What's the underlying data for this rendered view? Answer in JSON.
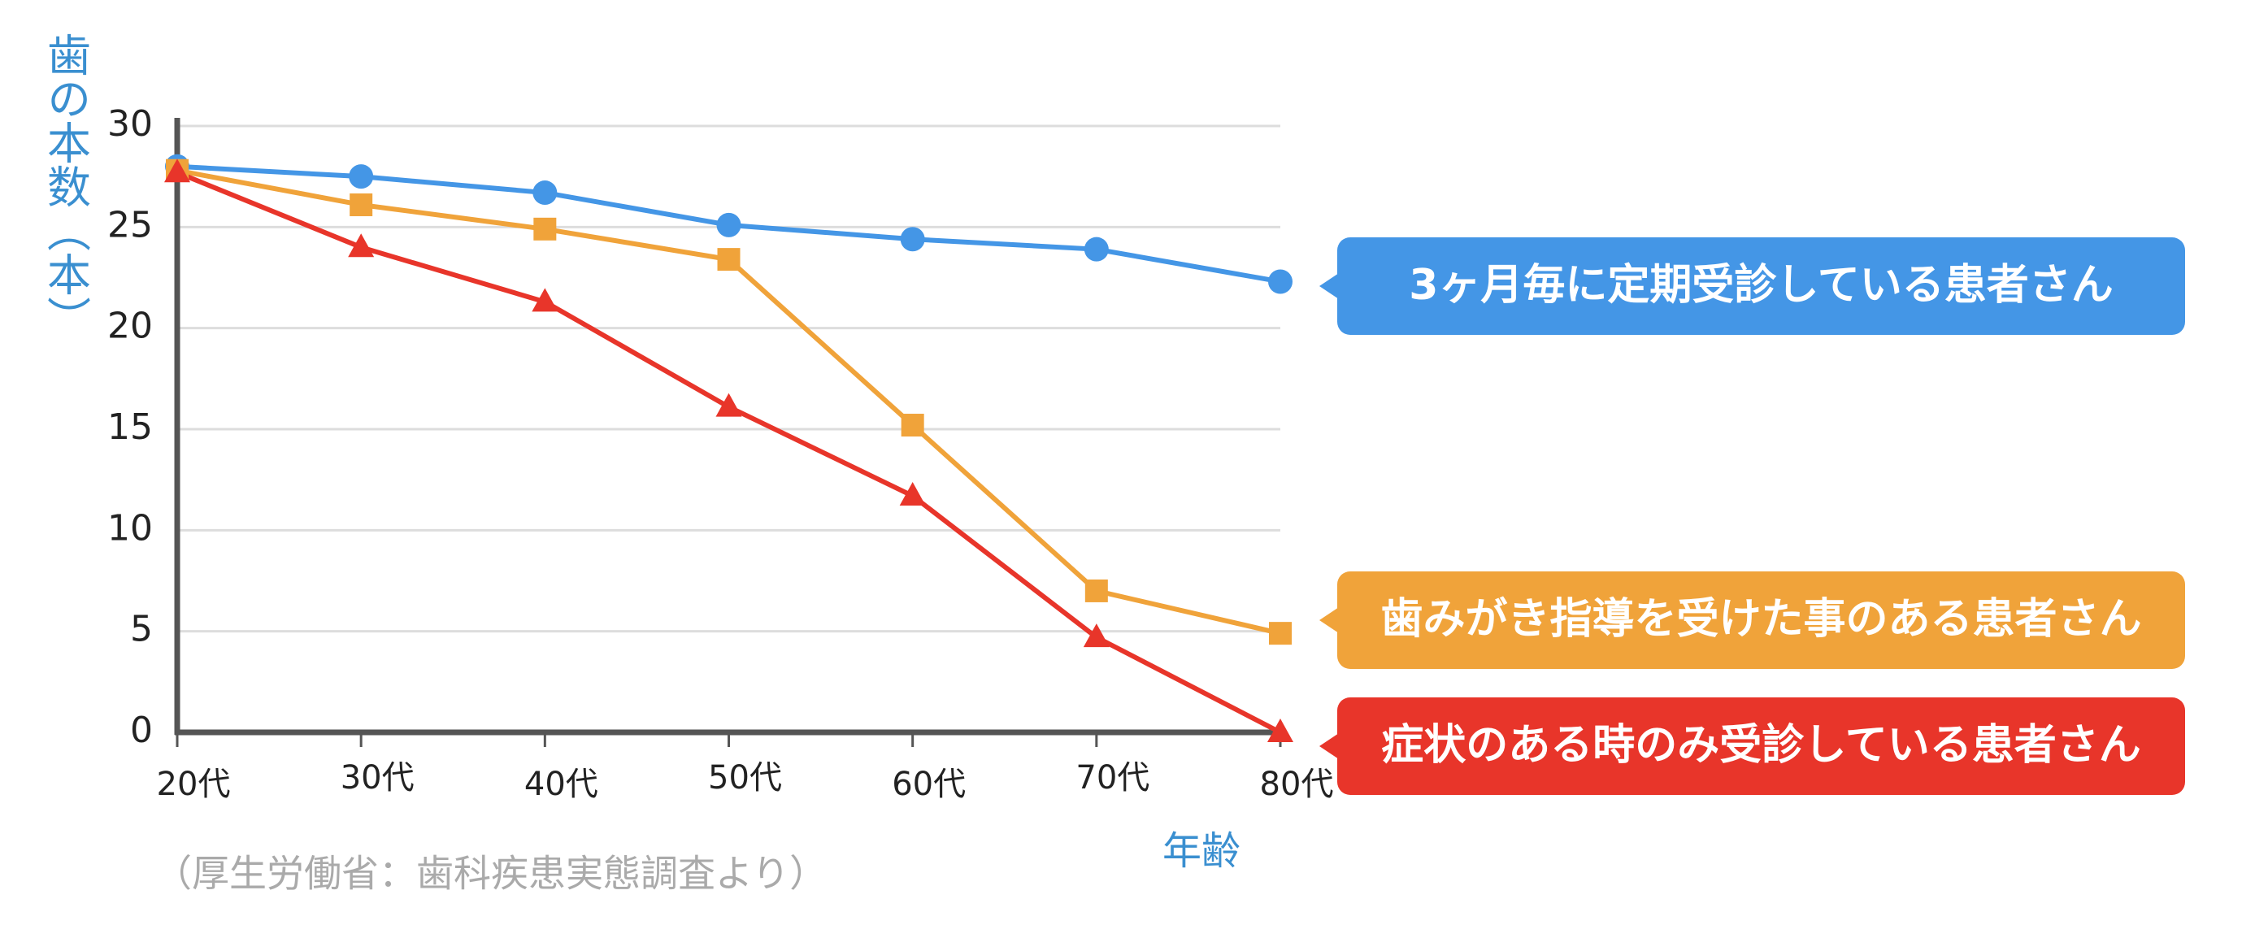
{
  "chart_data": {
    "type": "line",
    "y_label": "歯の本数（本）",
    "x_label": "年齢",
    "source": "（厚生労働省：歯科疾患実態調査より）",
    "categories": [
      "20代",
      "30代",
      "40代",
      "50代",
      "60代",
      "70代",
      "80代"
    ],
    "series": [
      {
        "name": "3ヶ月毎に定期受診している患者さん",
        "color": "#4496e6",
        "marker": "circle",
        "values": [
          28,
          27.5,
          26.7,
          25.1,
          24.4,
          23.9,
          22.3
        ]
      },
      {
        "name": "歯みがき指導を受けた事のある患者さん",
        "color": "#f0a33a",
        "marker": "square",
        "values": [
          27.8,
          26.1,
          24.9,
          23.4,
          15.2,
          7,
          4.9
        ]
      },
      {
        "name": "症状のある時のみ受診している患者さん",
        "color": "#e8352a",
        "marker": "triangle",
        "values": [
          27.7,
          24,
          21.3,
          16.1,
          11.7,
          4.7,
          0
        ]
      }
    ],
    "ylim": [
      0,
      30
    ],
    "yticks": [
      0,
      5,
      10,
      15,
      20,
      25,
      30
    ],
    "grid": true
  }
}
